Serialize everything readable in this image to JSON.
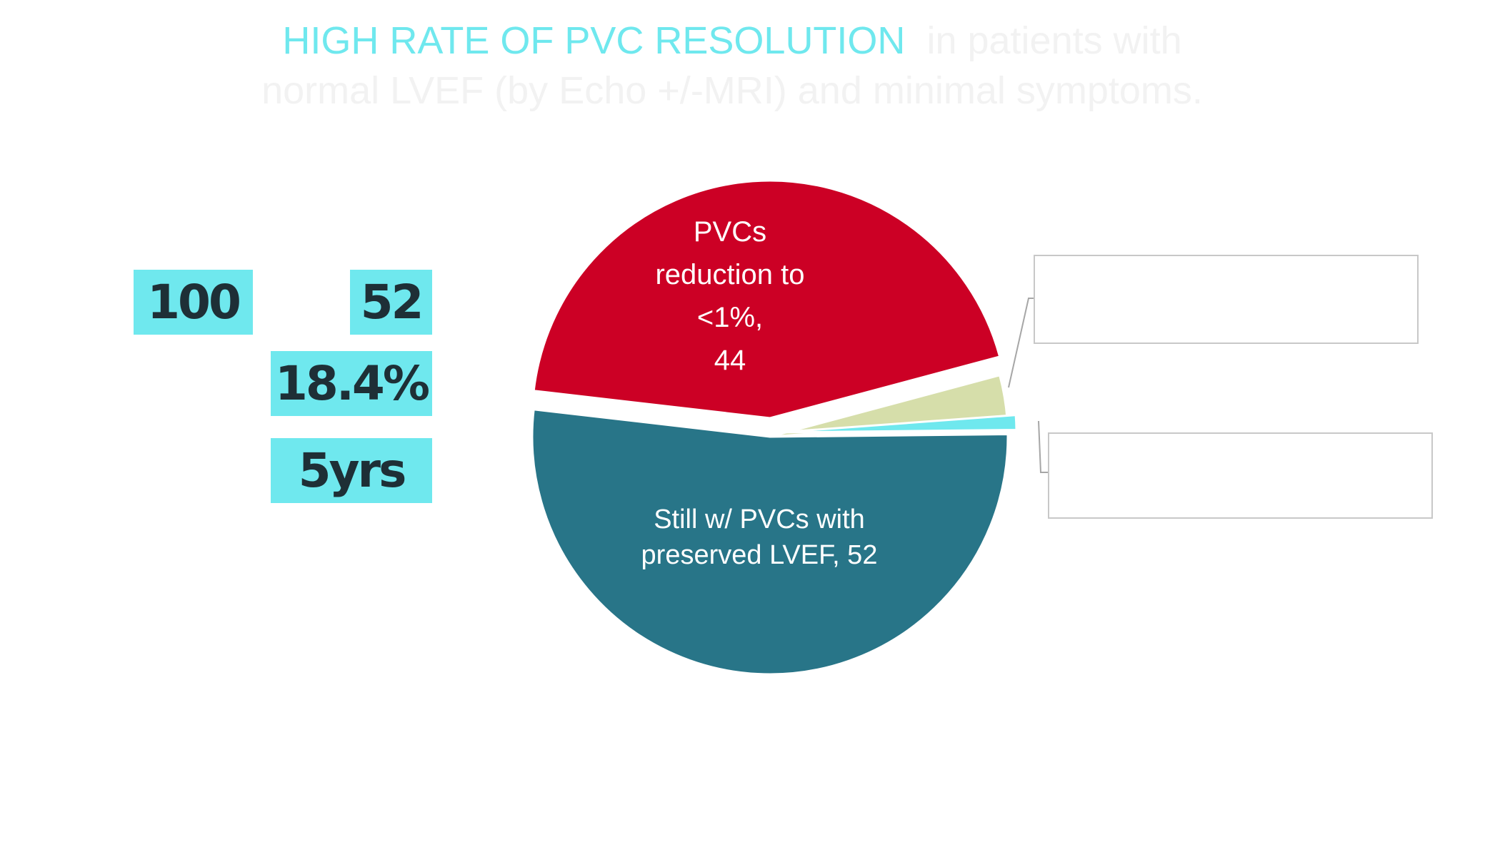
{
  "title": {
    "highlight": "HIGH RATE OF PVC RESOLUTION",
    "rest_line1": "in patients with",
    "line2": "normal LVEF (by Echo +/-MRI) and minimal symptoms."
  },
  "stats": {
    "a": "100",
    "b": "52",
    "c": "18.4%",
    "d": "5yrs"
  },
  "colors": {
    "accent": "#6fe8ee",
    "red": "#cc0025",
    "teal": "#287588",
    "olive": "#d6deaa",
    "cyan": "#6fe8ee",
    "callout_border": "#c8c8c8"
  },
  "chart_data": {
    "type": "pie",
    "slices": [
      {
        "name": "PVCs reduction to <1%",
        "value": 44,
        "color": "#cc0025",
        "label_lines": [
          "PVCs",
          "reduction to",
          "<1%,",
          "44"
        ]
      },
      {
        "name": "",
        "value": 3,
        "color": "#d6deaa",
        "label_lines": []
      },
      {
        "name": "",
        "value": 1,
        "color": "#6fe8ee",
        "label_lines": []
      },
      {
        "name": "Still w/ PVCs with preserved LVEF",
        "value": 52,
        "color": "#287588",
        "label_lines": [
          "Still w/ PVCs with",
          "preserved LVEF, 52"
        ]
      }
    ],
    "callouts": [
      "",
      ""
    ]
  }
}
